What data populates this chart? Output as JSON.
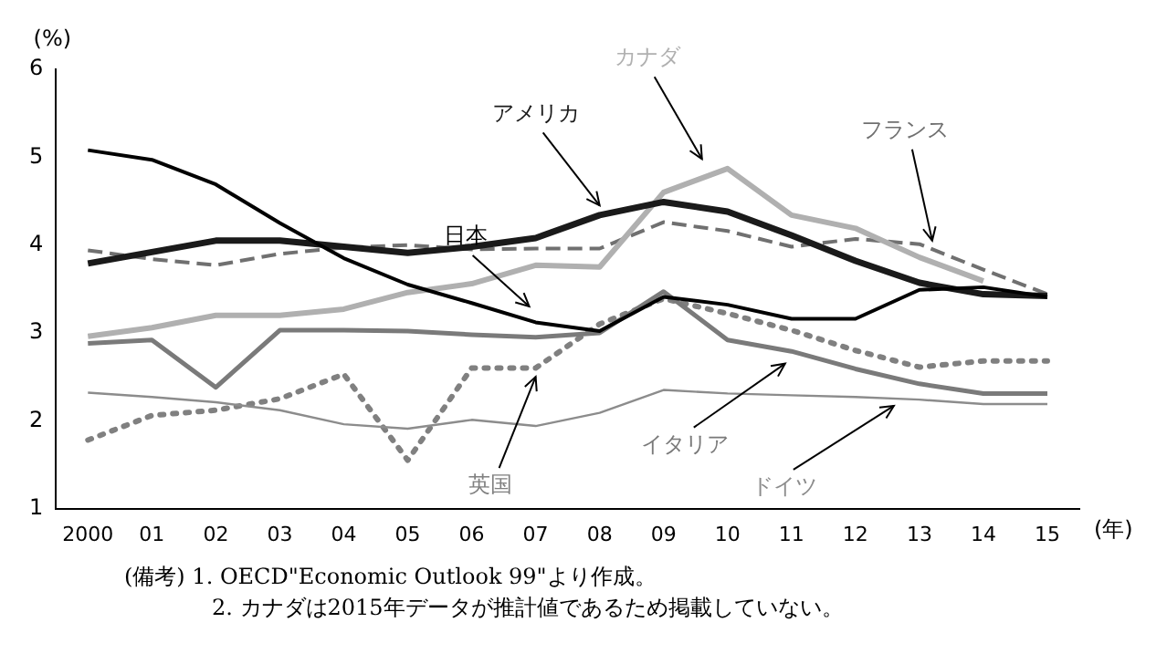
{
  "chart_data": {
    "type": "line",
    "ylabel": "(%)",
    "xlabel": "(年)",
    "categories": [
      "2000",
      "01",
      "02",
      "03",
      "04",
      "05",
      "06",
      "07",
      "08",
      "09",
      "10",
      "11",
      "12",
      "13",
      "14",
      "15"
    ],
    "ylim": [
      1,
      6
    ],
    "yticks": [
      1,
      2,
      3,
      4,
      5,
      6
    ],
    "grid": false,
    "legend": false,
    "marker": "none",
    "series": [
      {
        "name": "日本",
        "color": "#000000",
        "line_style": "solid",
        "values": [
          5.08,
          4.97,
          4.69,
          4.25,
          3.85,
          3.55,
          3.34,
          3.12,
          3.02,
          3.41,
          3.32,
          3.16,
          3.16,
          3.49,
          3.52,
          3.41
        ]
      },
      {
        "name": "アメリカ",
        "color": "#1a1a1a",
        "line_style": "solid",
        "values": [
          3.79,
          3.92,
          4.05,
          4.05,
          3.98,
          3.91,
          3.98,
          4.08,
          4.34,
          4.49,
          4.38,
          4.11,
          3.82,
          3.57,
          3.44,
          3.42
        ]
      },
      {
        "name": "カナダ",
        "color": "#b0b0b0",
        "line_style": "solid",
        "values": [
          2.96,
          3.06,
          3.2,
          3.2,
          3.27,
          3.46,
          3.56,
          3.77,
          3.75,
          4.6,
          4.87,
          4.34,
          4.19,
          3.86,
          3.59,
          null
        ]
      },
      {
        "name": "フランス",
        "color": "#707070",
        "line_style": "dashed",
        "values": [
          3.94,
          3.84,
          3.77,
          3.9,
          3.97,
          4.0,
          3.95,
          3.96,
          3.96,
          4.26,
          4.16,
          3.98,
          4.07,
          4.01,
          3.72,
          3.44
        ]
      },
      {
        "name": "イタリア",
        "color": "#7a7a7a",
        "line_style": "solid",
        "values": [
          2.88,
          2.92,
          2.38,
          3.03,
          3.03,
          3.02,
          2.98,
          2.95,
          3.0,
          3.47,
          2.92,
          2.79,
          2.59,
          2.42,
          2.31,
          2.31
        ]
      },
      {
        "name": "ドイツ",
        "color": "#8c8c8c",
        "line_style": "solid",
        "values": [
          2.32,
          2.27,
          2.21,
          2.12,
          1.96,
          1.91,
          2.01,
          1.94,
          2.09,
          2.35,
          2.31,
          2.29,
          2.27,
          2.24,
          2.19,
          2.19
        ]
      },
      {
        "name": "英国",
        "color": "#808080",
        "line_style": "dotted",
        "values": [
          1.78,
          2.06,
          2.12,
          2.25,
          2.53,
          1.55,
          2.6,
          2.6,
          3.1,
          3.39,
          3.22,
          3.03,
          2.8,
          2.61,
          2.68,
          2.68
        ]
      }
    ],
    "annotations": [
      "(備考) 1. OECD\"Economic Outlook 99\"より作成。",
      "2. カナダは2015年データが推計値であるため掲載していない。"
    ]
  }
}
